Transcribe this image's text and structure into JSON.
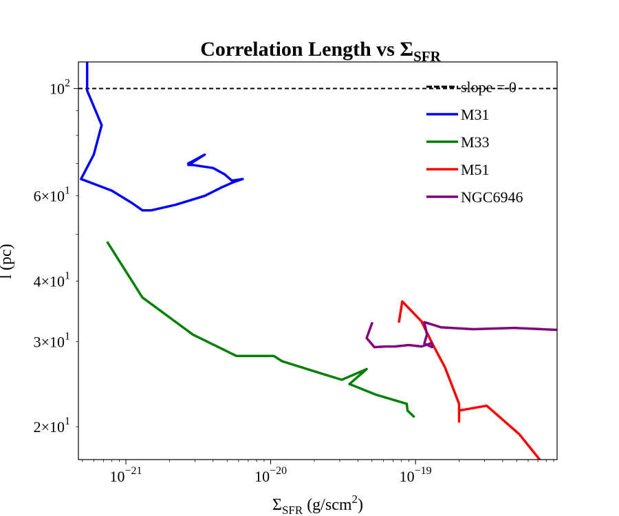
{
  "chart_data": {
    "type": "line",
    "title": "Correlation Length vs Σ",
    "title_sub": "SFR",
    "xlabel": "Σ",
    "xlabel_sub": "SFR",
    "xlabel_rest": " (g/scm",
    "xlabel_sup": "2",
    "xlabel_end": ")",
    "ylabel": "l (pc)",
    "xscale": "log",
    "yscale": "log",
    "xlim": [
      4.7e-22,
      9.5e-19
    ],
    "ylim": [
      17.1,
      113.5
    ],
    "grid": false,
    "legend_placement": "top-right",
    "x_ticks": [
      {
        "value": 1e-21,
        "base": "10",
        "exp": "−21"
      },
      {
        "value": 1e-20,
        "base": "10",
        "exp": "−20"
      },
      {
        "value": 1e-19,
        "base": "10",
        "exp": "−19"
      }
    ],
    "y_ticks": [
      {
        "value": 100,
        "mantissa": "",
        "base": "10",
        "exp": "2"
      },
      {
        "value": 60,
        "mantissa": "6×",
        "base": "10",
        "exp": "1"
      },
      {
        "value": 40,
        "mantissa": "4×",
        "base": "10",
        "exp": "1"
      },
      {
        "value": 30,
        "mantissa": "3×",
        "base": "10",
        "exp": "1"
      },
      {
        "value": 20,
        "mantissa": "2×",
        "base": "10",
        "exp": "1"
      }
    ],
    "reference_lines": [
      {
        "name": "slope = 0",
        "y": 100,
        "color": "#000000",
        "style": "dashed"
      }
    ],
    "series": [
      {
        "name": "M31",
        "color": "#0000ff",
        "points": [
          [
            5.4e-22,
            113.5
          ],
          [
            5.4e-22,
            99
          ],
          [
            6.8e-22,
            84
          ],
          [
            6e-22,
            73
          ],
          [
            4.9e-22,
            65
          ],
          [
            8e-22,
            61.5
          ],
          [
            1.1e-21,
            58
          ],
          [
            1.3e-21,
            56
          ],
          [
            1.5e-21,
            56
          ],
          [
            2.2e-21,
            57.5
          ],
          [
            3.5e-21,
            60
          ],
          [
            4.6e-21,
            62.5
          ],
          [
            5.5e-21,
            64
          ],
          [
            6.4e-21,
            65
          ],
          [
            5.4e-21,
            64.5
          ],
          [
            4.8e-21,
            66.5
          ],
          [
            4e-21,
            68.5
          ],
          [
            2.9e-21,
            69.5
          ],
          [
            2.7e-21,
            69.5
          ],
          [
            3.5e-21,
            73
          ],
          [
            2.7e-21,
            70
          ]
        ]
      },
      {
        "name": "M33",
        "color": "#008000",
        "points": [
          [
            7.5e-22,
            48
          ],
          [
            1.3e-21,
            37
          ],
          [
            2.9e-21,
            31
          ],
          [
            5.8e-21,
            28
          ],
          [
            1.05e-20,
            28
          ],
          [
            1.2e-20,
            27.3
          ],
          [
            2.2e-20,
            25.8
          ],
          [
            3.1e-20,
            25
          ],
          [
            4.6e-20,
            26.3
          ],
          [
            3.5e-20,
            24.5
          ],
          [
            5.3e-20,
            23.3
          ],
          [
            8.7e-20,
            22.3
          ],
          [
            8.8e-20,
            21.6
          ],
          [
            9.7e-20,
            21
          ]
        ]
      },
      {
        "name": "M51",
        "color": "#ff0000",
        "points": [
          [
            7.7e-20,
            33
          ],
          [
            8.1e-20,
            36.3
          ],
          [
            1.1e-19,
            33
          ],
          [
            1.3e-19,
            29.8
          ],
          [
            1.6e-19,
            26.5
          ],
          [
            2e-19,
            22.3
          ],
          [
            2e-19,
            20.5
          ],
          [
            2e-19,
            21.6
          ],
          [
            3.1e-19,
            22.1
          ],
          [
            5.2e-19,
            19.3
          ],
          [
            7.2e-19,
            17.1
          ]
        ]
      },
      {
        "name": "NGC6946",
        "color": "#800080",
        "points": [
          [
            5e-20,
            32.7
          ],
          [
            4.6e-20,
            30.5
          ],
          [
            5.2e-20,
            29.2
          ],
          [
            6.2e-20,
            29.3
          ],
          [
            7.2e-20,
            29.3
          ],
          [
            9e-20,
            29.5
          ],
          [
            1.1e-19,
            29.3
          ],
          [
            1.3e-19,
            29.8
          ],
          [
            1.3e-19,
            29.2
          ],
          [
            1.15e-19,
            29.7
          ],
          [
            1.2e-19,
            31
          ],
          [
            1.15e-19,
            32.9
          ],
          [
            1.5e-19,
            32.1
          ],
          [
            2.5e-19,
            31.8
          ],
          [
            4.8e-19,
            32
          ],
          [
            9.5e-19,
            31.7
          ]
        ]
      }
    ]
  }
}
